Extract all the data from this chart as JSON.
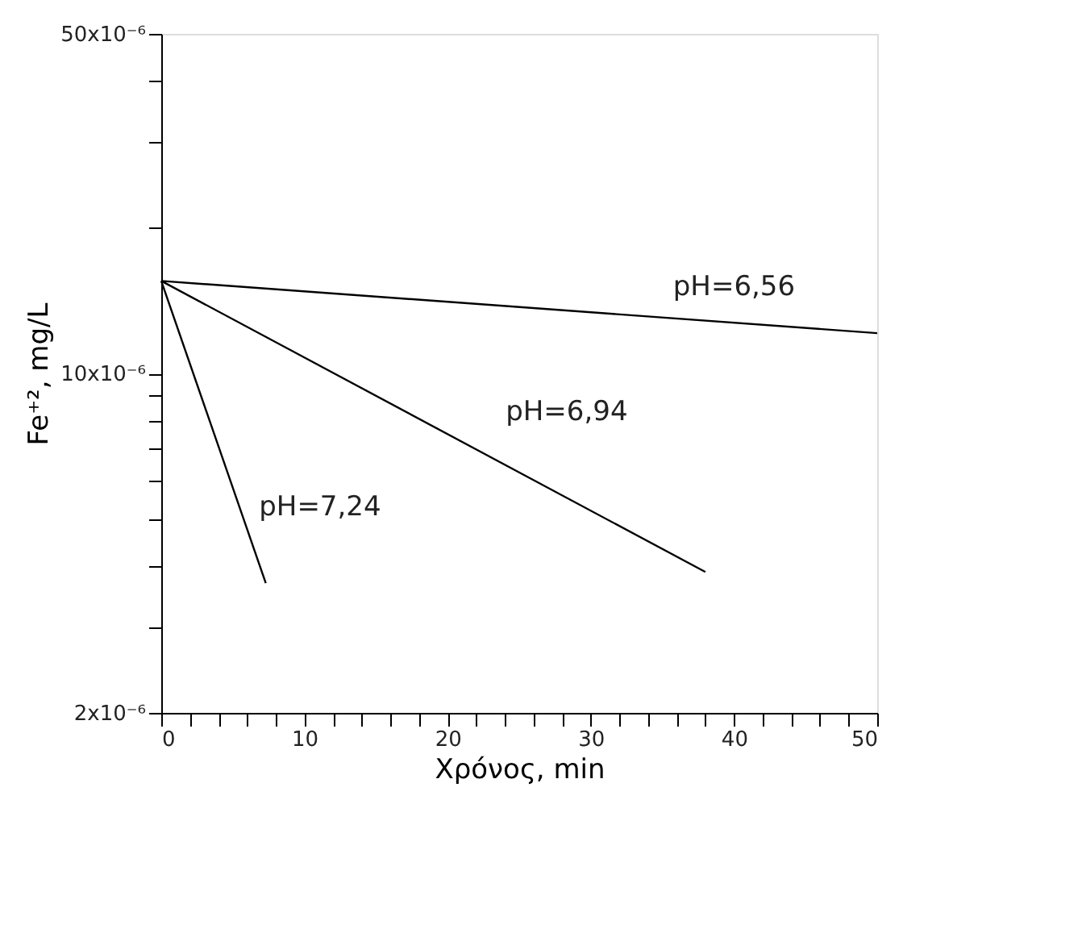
{
  "chart_data": {
    "type": "line",
    "xlabel": "Χρόνος, min",
    "ylabel": "Fe⁺², mg/L",
    "xlim": [
      0,
      50
    ],
    "xticks": [
      0,
      {
        "value": 2,
        "label": null
      },
      {
        "value": 4,
        "label": null
      },
      {
        "value": 6,
        "label": null
      },
      {
        "value": 8,
        "label": null
      },
      10,
      {
        "value": 12,
        "label": null
      },
      {
        "value": 14,
        "label": null
      },
      {
        "value": 16,
        "label": null
      },
      {
        "value": 18,
        "label": null
      },
      20,
      {
        "value": 22,
        "label": null
      },
      {
        "value": 24,
        "label": null
      },
      {
        "value": 26,
        "label": null
      },
      {
        "value": 28,
        "label": null
      },
      30,
      {
        "value": 32,
        "label": null
      },
      {
        "value": 34,
        "label": null
      },
      {
        "value": 36,
        "label": null
      },
      {
        "value": 38,
        "label": null
      },
      40,
      {
        "value": 42,
        "label": null
      },
      {
        "value": 44,
        "label": null
      },
      {
        "value": 46,
        "label": null
      },
      {
        "value": 48,
        "label": null
      },
      50
    ],
    "ylim": [
      2e-06,
      5e-05
    ],
    "log": true,
    "yticks": [
      {
        "value": 2e-06,
        "label": "2x10⁻⁶"
      },
      {
        "value": 3e-06,
        "label": null
      },
      {
        "value": 4e-06,
        "label": null
      },
      {
        "value": 5e-06,
        "label": null
      },
      {
        "value": 6e-06,
        "label": null
      },
      {
        "value": 7e-06,
        "label": null
      },
      {
        "value": 8e-06,
        "label": null
      },
      {
        "value": 9e-06,
        "label": null
      },
      {
        "value": 1e-05,
        "label": "10x10⁻⁶"
      },
      {
        "value": 2e-05,
        "label": null
      },
      {
        "value": 3e-05,
        "label": null
      },
      {
        "value": 4e-05,
        "label": null
      },
      {
        "value": 5e-05,
        "label": "50x10⁻⁶"
      }
    ],
    "grid": false,
    "marker": "none",
    "line_style": "solid",
    "series": [
      {
        "name": "pH=6,56",
        "color": "#000000",
        "x": [
          0,
          50
        ],
        "values": [
          1.55e-05,
          1.21e-05
        ]
      },
      {
        "name": "pH=6,94",
        "color": "#000000",
        "x": [
          0,
          38
        ],
        "values": [
          1.55e-05,
          3.9e-06
        ]
      },
      {
        "name": "pH=7,24",
        "color": "#000000",
        "x": [
          0,
          7.3
        ],
        "values": [
          1.55e-05,
          3.7e-06
        ]
      }
    ]
  }
}
